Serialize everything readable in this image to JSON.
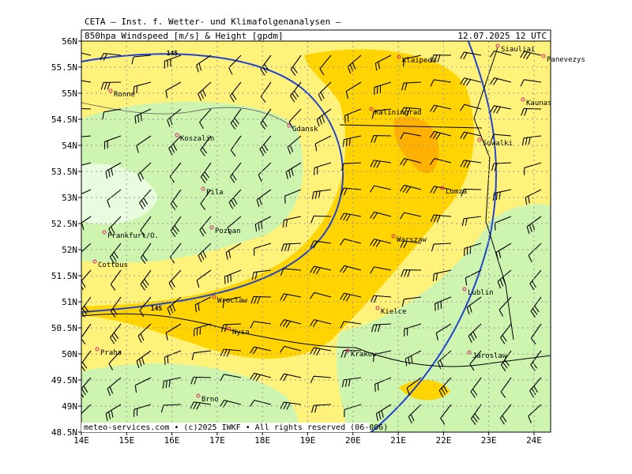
{
  "header": {
    "institute": "CETA – Inst. f. Wetter- und Klimafolgenanalysen –",
    "product": "850hpa Windspeed [m/s] & Height [gpdm]",
    "valid_time": "12.07.2025 12 UTC"
  },
  "lat_labels": [
    "56N",
    "55.5N",
    "55N",
    "54.5N",
    "54N",
    "53.5N",
    "53N",
    "52.5N",
    "52N",
    "51.5N",
    "51N",
    "50.5N",
    "50N",
    "49.5N",
    "49N",
    "48.5N"
  ],
  "lon_labels": [
    "14E",
    "15E",
    "16E",
    "17E",
    "18E",
    "19E",
    "20E",
    "21E",
    "22E",
    "23E",
    "24E"
  ],
  "contour_labels": [
    "145",
    "145"
  ],
  "cities": [
    "Siauliai",
    "Panevezys",
    "Klaipeda",
    "Kaunas",
    "Ronne",
    "Kaliningrad",
    "Gdansk",
    "Koszalin",
    "Suwalki",
    "Lomza",
    "Pila",
    "Poznan",
    "Frankfurt/O.",
    "Warszaw",
    "Cottbus",
    "Wroclaw",
    "Lublin",
    "Kielce",
    "Nysa",
    "Praha",
    "Krakow",
    "Jaroslaw",
    "Brno"
  ],
  "footer": "meteo-services.com • (c)2025 IWKF • All rights reserved (06-006)"
}
